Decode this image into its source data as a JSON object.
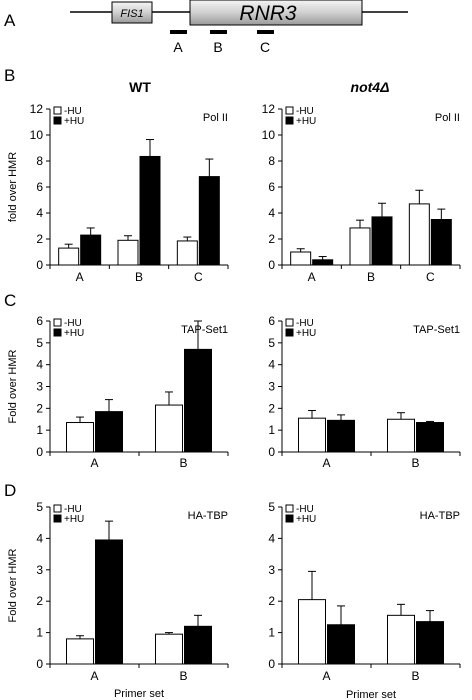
{
  "schematic": {
    "panel": "A",
    "genes": [
      "FIS1",
      "RNR3"
    ],
    "primers": [
      "A",
      "B",
      "C"
    ]
  },
  "panel_letters": {
    "B": "B",
    "C": "C",
    "D": "D"
  },
  "column_titles": {
    "left": "WT",
    "right": "not4Δ"
  },
  "legend": {
    "minus": "-HU",
    "plus": "+HU"
  },
  "colors": {
    "minus_fill": "#ffffff",
    "plus_fill": "#000000",
    "stroke": "#000000"
  },
  "chart_data": [
    {
      "type": "bar",
      "id": "B-WT",
      "panel": "B",
      "column": "WT",
      "title": "Pol II",
      "ylabel": "fold over HMR",
      "xlabel": "",
      "categories": [
        "A",
        "B",
        "C"
      ],
      "ylim": [
        0,
        12
      ],
      "yticks": [
        0,
        2,
        4,
        6,
        8,
        10,
        12
      ],
      "series": [
        {
          "name": "-HU",
          "values": [
            1.3,
            1.9,
            1.85
          ],
          "errors": [
            0.3,
            0.35,
            0.3
          ]
        },
        {
          "name": "+HU",
          "values": [
            2.3,
            8.35,
            6.8
          ],
          "errors": [
            0.55,
            1.3,
            1.35
          ]
        }
      ]
    },
    {
      "type": "bar",
      "id": "B-not4",
      "panel": "B",
      "column": "not4Δ",
      "title": "Pol II",
      "ylabel": "",
      "xlabel": "",
      "categories": [
        "A",
        "B",
        "C"
      ],
      "ylim": [
        0,
        12
      ],
      "yticks": [
        0,
        2,
        4,
        6,
        8,
        10,
        12
      ],
      "series": [
        {
          "name": "-HU",
          "values": [
            1.0,
            2.85,
            4.7
          ],
          "errors": [
            0.25,
            0.6,
            1.05
          ]
        },
        {
          "name": "+HU",
          "values": [
            0.4,
            3.7,
            3.5
          ],
          "errors": [
            0.25,
            1.05,
            0.8
          ]
        }
      ]
    },
    {
      "type": "bar",
      "id": "C-WT",
      "panel": "C",
      "column": "WT",
      "title": "TAP-Set1",
      "ylabel": "Fold over HMR",
      "xlabel": "",
      "categories": [
        "A",
        "B"
      ],
      "ylim": [
        0,
        6
      ],
      "yticks": [
        0,
        1,
        2,
        3,
        4,
        5,
        6
      ],
      "series": [
        {
          "name": "-HU",
          "values": [
            1.35,
            2.15
          ],
          "errors": [
            0.25,
            0.6
          ]
        },
        {
          "name": "+HU",
          "values": [
            1.85,
            4.7
          ],
          "errors": [
            0.55,
            1.3
          ]
        }
      ]
    },
    {
      "type": "bar",
      "id": "C-not4",
      "panel": "C",
      "column": "not4Δ",
      "title": "TAP-Set1",
      "ylabel": "",
      "xlabel": "",
      "categories": [
        "A",
        "B"
      ],
      "ylim": [
        0,
        6
      ],
      "yticks": [
        0,
        1,
        2,
        3,
        4,
        5,
        6
      ],
      "series": [
        {
          "name": "-HU",
          "values": [
            1.55,
            1.5
          ],
          "errors": [
            0.35,
            0.3
          ]
        },
        {
          "name": "+HU",
          "values": [
            1.45,
            1.35
          ],
          "errors": [
            0.25,
            0.05
          ]
        }
      ]
    },
    {
      "type": "bar",
      "id": "D-WT",
      "panel": "D",
      "column": "WT",
      "title": "HA-TBP",
      "ylabel": "Fold over HMR",
      "xlabel": "Primer set",
      "categories": [
        "A",
        "B"
      ],
      "ylim": [
        0,
        5
      ],
      "yticks": [
        0,
        1,
        2,
        3,
        4,
        5
      ],
      "series": [
        {
          "name": "-HU",
          "values": [
            0.8,
            0.95
          ],
          "errors": [
            0.1,
            0.05
          ]
        },
        {
          "name": "+HU",
          "values": [
            3.95,
            1.2
          ],
          "errors": [
            0.6,
            0.35
          ]
        }
      ]
    },
    {
      "type": "bar",
      "id": "D-not4",
      "panel": "D",
      "column": "not4Δ",
      "title": "HA-TBP",
      "ylabel": "",
      "xlabel": "Primer set",
      "categories": [
        "A",
        "B"
      ],
      "ylim": [
        0,
        5
      ],
      "yticks": [
        0,
        1,
        2,
        3,
        4,
        5
      ],
      "series": [
        {
          "name": "-HU",
          "values": [
            2.05,
            1.55
          ],
          "errors": [
            0.9,
            0.35
          ]
        },
        {
          "name": "+HU",
          "values": [
            1.25,
            1.35
          ],
          "errors": [
            0.6,
            0.35
          ]
        }
      ]
    }
  ]
}
